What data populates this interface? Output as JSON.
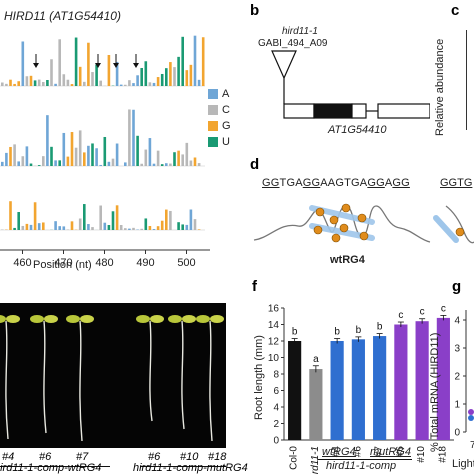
{
  "panel_a": {
    "title": "HIRD11 (AT1G54410)",
    "xlabel": "Position (nt)",
    "legend": [
      {
        "label": "A",
        "color": "#6fa6d6"
      },
      {
        "label": "C",
        "color": "#b8b8b8"
      },
      {
        "label": "G",
        "color": "#f2a530"
      },
      {
        "label": "U",
        "color": "#1a9a73"
      }
    ]
  },
  "panel_b": {
    "letter": "b",
    "line1": "hird11-1",
    "line2": "GABI_494_A09",
    "gene": "AT1G54410"
  },
  "panel_c": {
    "letter": "c",
    "ylabel": "Relative abundance"
  },
  "panel_d": {
    "letter": "d",
    "seq_wt": "GGTGAGGAAGTGAGGAGG",
    "seq_mut_fragment": "GGTG",
    "structure_label": "wtRG4"
  },
  "panel_e": {
    "lines": [
      {
        "id": "#4",
        "x": 0
      },
      {
        "id": "#6",
        "x": 1
      },
      {
        "id": "#7",
        "x": 2
      },
      {
        "id": "#6",
        "x": 3
      },
      {
        "id": "#10",
        "x": 4
      },
      {
        "id": "#18",
        "x": 5
      }
    ],
    "group1": "hird11-1-comp-wtRG4",
    "group2": "hird11-1-comp-mutRG4"
  },
  "panel_f": {
    "letter": "f",
    "ylabel": "Root length (mm)",
    "group_wt": "wtRG4",
    "group_mut": "mutRG4",
    "group_comp": "hird11-1-comp",
    "chart_data": {
      "type": "bar",
      "categories": [
        "Col-0",
        "hird11-1",
        "#4",
        "#6",
        "#7",
        "#6",
        "#10",
        "#18"
      ],
      "values": [
        12.0,
        8.6,
        12.0,
        12.2,
        12.6,
        14.0,
        14.4,
        14.8
      ],
      "errors": [
        0.3,
        0.4,
        0.3,
        0.3,
        0.3,
        0.3,
        0.3,
        0.3
      ],
      "letters": [
        "b",
        "a",
        "b",
        "b",
        "b",
        "c",
        "c",
        "c"
      ],
      "colors": [
        "#111111",
        "#8c8c8c",
        "#2f6fd0",
        "#2f6fd0",
        "#2f6fd0",
        "#8a3fc8",
        "#8a3fc8",
        "#8a3fc8"
      ],
      "ylim": [
        0,
        16
      ],
      "yticks": [
        0,
        2,
        4,
        6,
        8,
        10,
        12,
        14,
        16
      ]
    }
  },
  "panel_g": {
    "letter": "g",
    "ylabel": "% Total mRNA (HIRD11)",
    "yticks": [
      "0",
      "1",
      "2",
      "3",
      "4"
    ],
    "xlabel_fragment": "Light",
    "xtick_fragment": "7"
  }
}
